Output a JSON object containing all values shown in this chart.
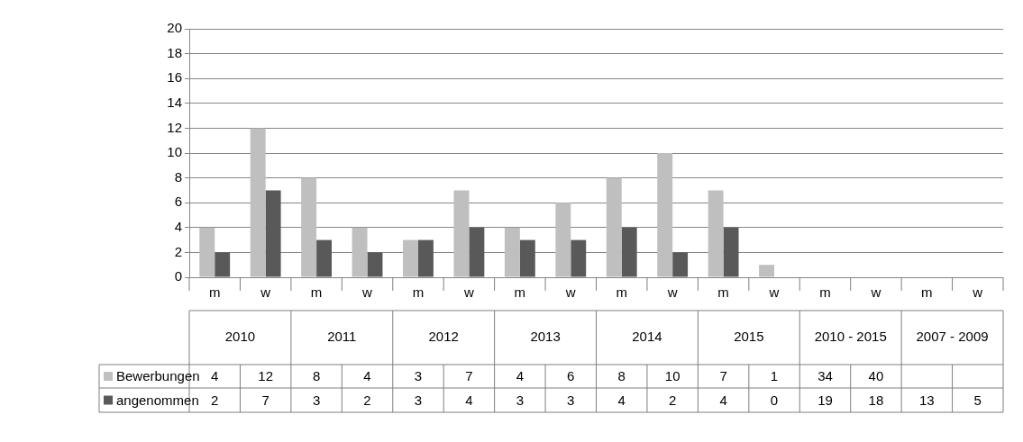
{
  "chart_data": {
    "type": "bar",
    "categories": [
      "m",
      "w",
      "m",
      "w",
      "m",
      "w",
      "m",
      "w",
      "m",
      "w",
      "m",
      "w",
      "m",
      "w",
      "m",
      "w"
    ],
    "annotations": [
      "2010",
      "2011",
      "2012",
      "2013",
      "2014",
      "2015",
      "2010 - 2015",
      "2007 - 2009"
    ],
    "series": [
      {
        "name": "Bewerbungen",
        "color": "#bfbfbf",
        "values": [
          4,
          12,
          8,
          4,
          3,
          7,
          4,
          6,
          8,
          10,
          7,
          1,
          null,
          null,
          null,
          null
        ],
        "value_labels": [
          "4",
          "12",
          "8",
          "4",
          "3",
          "7",
          "4",
          "6",
          "8",
          "10",
          "7",
          "1",
          "34",
          "40",
          null,
          null
        ]
      },
      {
        "name": "angenommen",
        "color": "#595959",
        "values": [
          2,
          7,
          3,
          2,
          3,
          4,
          3,
          3,
          4,
          2,
          4,
          0,
          null,
          null,
          null,
          null
        ],
        "value_labels": [
          "2",
          "7",
          "3",
          "2",
          "3",
          "4",
          "3",
          "3",
          "4",
          "2",
          "4",
          "0",
          "19",
          "18",
          "13",
          "5"
        ]
      }
    ],
    "legend": "bottom",
    "ylim": [
      0,
      20
    ],
    "yticks": [
      0,
      2,
      4,
      6,
      8,
      10,
      12,
      14,
      16,
      18,
      20
    ],
    "grid": true
  }
}
